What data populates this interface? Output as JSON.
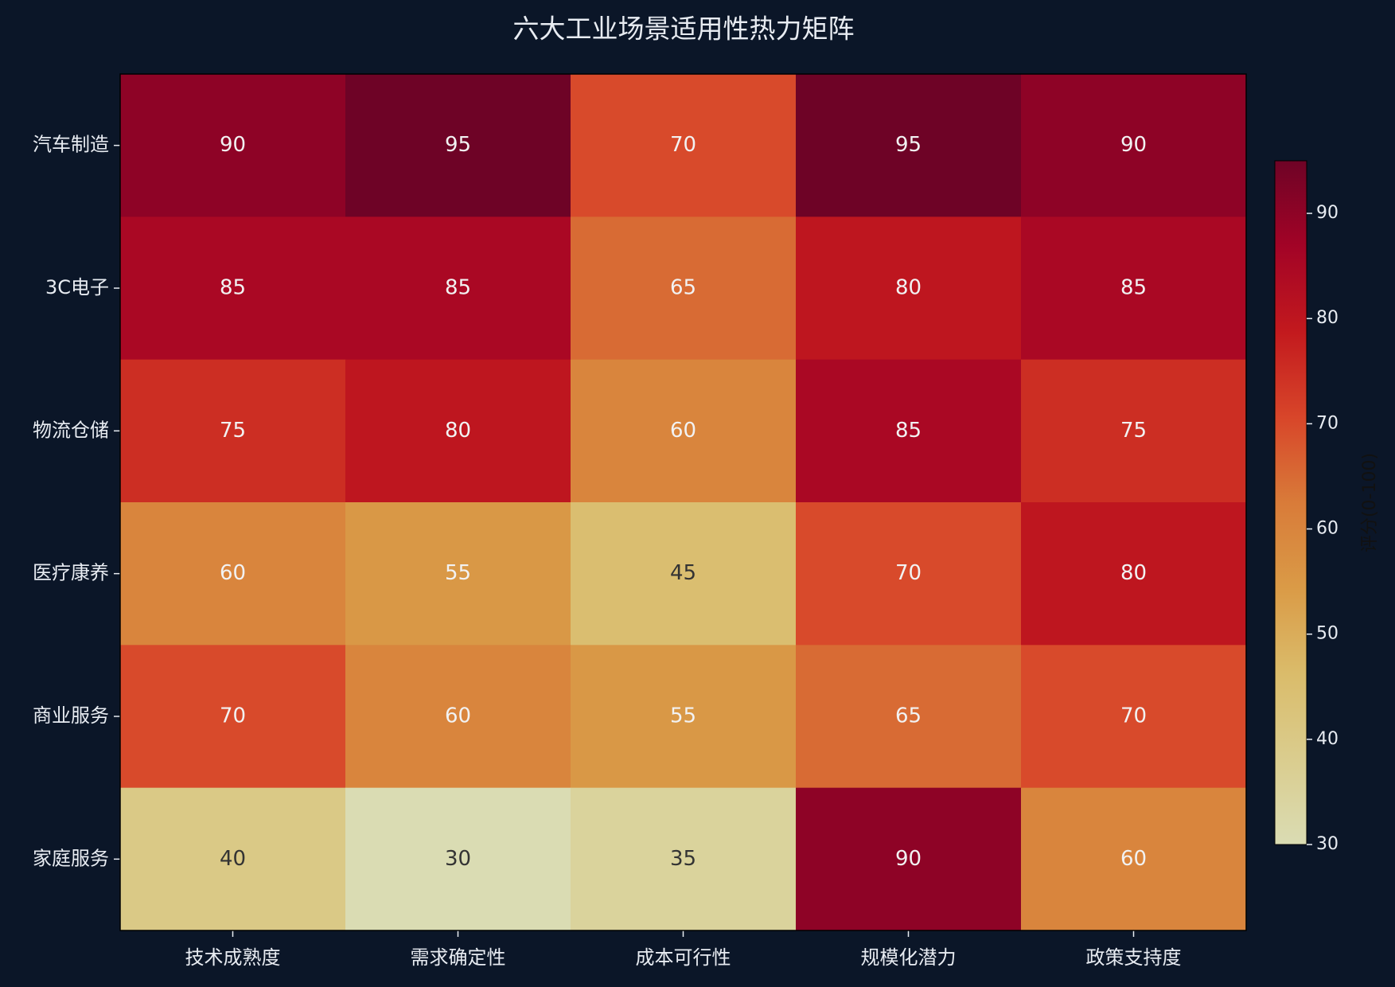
{
  "chart_data": {
    "type": "heatmap",
    "title": "六大工业场景适用性热力矩阵",
    "categories": [
      "技术成熟度",
      "需求确定性",
      "成本可行性",
      "规模化潜力",
      "政策支持度"
    ],
    "rows": [
      "汽车制造",
      "3C电子",
      "物流仓储",
      "医疗康养",
      "商业服务",
      "家庭服务"
    ],
    "values": [
      [
        90,
        95,
        70,
        95,
        90
      ],
      [
        85,
        85,
        65,
        80,
        85
      ],
      [
        75,
        80,
        60,
        85,
        75
      ],
      [
        60,
        55,
        45,
        70,
        80
      ],
      [
        70,
        60,
        55,
        65,
        70
      ],
      [
        40,
        30,
        35,
        90,
        60
      ]
    ],
    "colormap": [
      "#ffffcc",
      "#ffeda0",
      "#fed976",
      "#feb24c",
      "#fd8d3c",
      "#fc4e2a",
      "#e31a1c",
      "#bd0026",
      "#800026"
    ],
    "colorbar_label": "评分(0-100)",
    "clim": [
      30,
      95
    ],
    "cticks": [
      30,
      40,
      50,
      60,
      70,
      80,
      90
    ]
  }
}
